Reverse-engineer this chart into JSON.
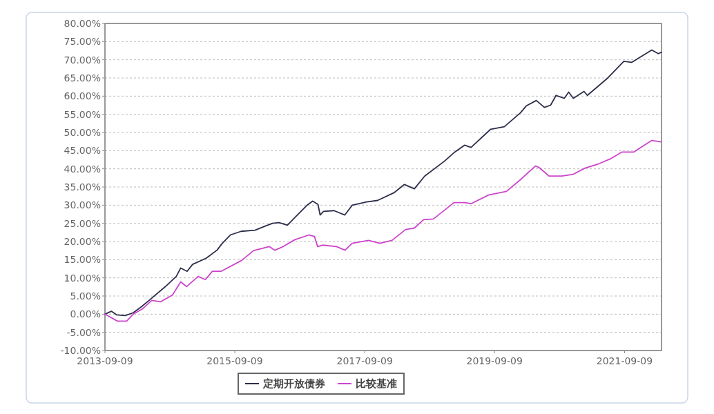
{
  "chart_data": {
    "type": "line",
    "xlim": [
      "2013-09-09",
      "2022-04-05"
    ],
    "xticks": [
      "2013-09-09",
      "2015-09-09",
      "2017-09-09",
      "2019-09-09",
      "2021-09-09"
    ],
    "ylim": [
      -10,
      80
    ],
    "yticks": [
      {
        "value": -10,
        "label": "-10.00%"
      },
      {
        "value": -5,
        "label": "-5.00%"
      },
      {
        "value": 0,
        "label": "0.00%"
      },
      {
        "value": 5,
        "label": "5.00%"
      },
      {
        "value": 10,
        "label": "10.00%"
      },
      {
        "value": 15,
        "label": "15.00%"
      },
      {
        "value": 20,
        "label": "20.00%"
      },
      {
        "value": 25,
        "label": "25.00%"
      },
      {
        "value": 30,
        "label": "30.00%"
      },
      {
        "value": 35,
        "label": "35.00%"
      },
      {
        "value": 40,
        "label": "40.00%"
      },
      {
        "value": 45,
        "label": "45.00%"
      },
      {
        "value": 50,
        "label": "50.00%"
      },
      {
        "value": 55,
        "label": "55.00%"
      },
      {
        "value": 60,
        "label": "60.00%"
      },
      {
        "value": 65,
        "label": "65.00%"
      },
      {
        "value": 70,
        "label": "70.00%"
      },
      {
        "value": 75,
        "label": "75.00%"
      },
      {
        "value": 80,
        "label": "80.00%"
      }
    ],
    "grid": "y",
    "legend": "bottom",
    "line_style": "solid",
    "series": [
      {
        "name": "定期开放债券",
        "color": "#2b2d4a",
        "x": [
          "2013-09-09",
          "2013-10-15",
          "2013-11-15",
          "2014-01-01",
          "2014-02-15",
          "2014-04-01",
          "2014-05-15",
          "2014-08-15",
          "2014-10-15",
          "2014-11-09",
          "2014-12-15",
          "2015-01-15",
          "2015-04-01",
          "2015-06-01",
          "2015-07-01",
          "2015-08-15",
          "2015-10-15",
          "2016-01-01",
          "2016-03-01",
          "2016-04-09",
          "2016-05-15",
          "2016-07-01",
          "2016-08-20",
          "2016-10-20",
          "2016-11-20",
          "2016-12-20",
          "2017-01-01",
          "2017-01-20",
          "2017-03-20",
          "2017-05-20",
          "2017-07-01",
          "2017-09-20",
          "2017-11-20",
          "2018-02-20",
          "2018-04-20",
          "2018-06-15",
          "2018-08-12",
          "2018-12-01",
          "2019-01-28",
          "2019-03-24",
          "2019-04-30",
          "2019-08-18",
          "2019-11-03",
          "2020-02-01",
          "2020-03-05",
          "2020-05-01",
          "2020-06-15",
          "2020-07-20",
          "2020-08-20",
          "2020-10-05",
          "2020-10-30",
          "2020-11-25",
          "2021-01-24",
          "2021-02-12",
          "2021-06-09",
          "2021-09-05",
          "2021-10-20",
          "2022-02-09",
          "2022-03-18",
          "2022-04-05"
        ],
        "values": [
          0,
          0.8,
          -0.2,
          -0.4,
          0.4,
          2.0,
          3.8,
          7.6,
          10.4,
          12.7,
          11.8,
          13.7,
          15.4,
          17.6,
          19.5,
          21.8,
          22.8,
          23.1,
          24.3,
          25.0,
          25.2,
          24.5,
          27.0,
          30.0,
          31.1,
          30.2,
          27.3,
          28.3,
          28.5,
          27.3,
          30.0,
          30.9,
          31.3,
          33.4,
          35.7,
          34.5,
          38.0,
          42.1,
          44.6,
          46.5,
          45.9,
          50.9,
          51.6,
          55.4,
          57.3,
          58.8,
          56.9,
          57.5,
          60.2,
          59.4,
          61.1,
          59.4,
          61.3,
          60.2,
          65.1,
          69.6,
          69.3,
          72.7,
          71.7,
          72.1
        ]
      },
      {
        "name": "比较基准",
        "color": "#cc44cc",
        "x": [
          "2013-09-09",
          "2013-11-18",
          "2014-01-09",
          "2014-02-15",
          "2014-04-09",
          "2014-05-30",
          "2014-07-18",
          "2014-09-24",
          "2014-11-09",
          "2014-12-12",
          "2015-02-15",
          "2015-03-28",
          "2015-05-06",
          "2015-06-24",
          "2015-10-18",
          "2015-12-24",
          "2016-03-21",
          "2016-04-21",
          "2016-05-30",
          "2016-08-12",
          "2016-10-30",
          "2016-11-30",
          "2016-12-18",
          "2017-01-15",
          "2017-04-03",
          "2017-05-21",
          "2017-06-30",
          "2017-09-30",
          "2017-12-03",
          "2018-02-09",
          "2018-04-27",
          "2018-06-15",
          "2018-08-06",
          "2018-09-30",
          "2019-01-24",
          "2019-03-24",
          "2019-04-30",
          "2019-08-06",
          "2019-11-15",
          "2020-02-01",
          "2020-04-27",
          "2020-05-15",
          "2020-07-12",
          "2020-09-21",
          "2020-11-25",
          "2021-01-30",
          "2021-04-18",
          "2021-06-20",
          "2021-08-24",
          "2021-10-30",
          "2022-02-09",
          "2022-04-02"
        ],
        "values": [
          0,
          -1.9,
          -1.9,
          0,
          1.5,
          3.8,
          3.4,
          5.3,
          8.9,
          7.6,
          10.4,
          9.5,
          11.8,
          11.8,
          14.8,
          17.5,
          18.6,
          17.6,
          18.4,
          20.5,
          21.8,
          21.4,
          18.6,
          19.0,
          18.6,
          17.6,
          19.5,
          20.3,
          19.5,
          20.3,
          23.3,
          23.7,
          26.0,
          26.2,
          30.7,
          30.7,
          30.4,
          32.8,
          33.8,
          37.0,
          40.8,
          40.4,
          38.0,
          38.0,
          38.5,
          40.2,
          41.4,
          42.7,
          44.6,
          44.6,
          47.8,
          47.4
        ]
      }
    ]
  }
}
